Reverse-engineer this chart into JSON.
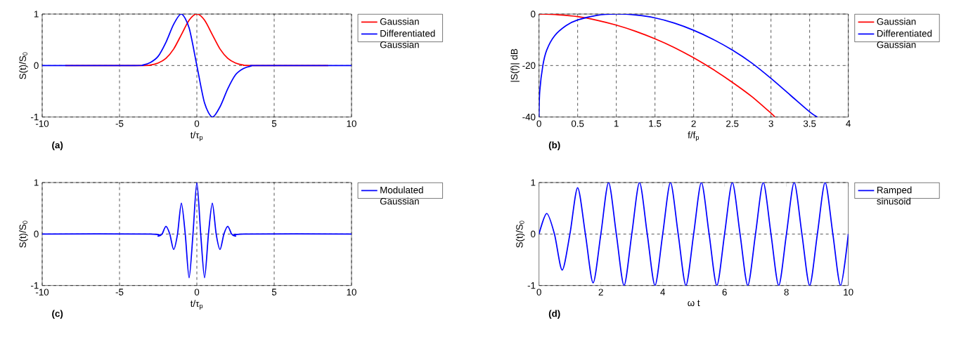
{
  "chart_data": [
    {
      "type": "line",
      "xlabel": "t/τ$_{p}$",
      "ylabel": "S(t)/S$_{0}$",
      "annotations": [
        "(a)"
      ],
      "xlim": [
        -10,
        10
      ],
      "ylim": [
        -1,
        1
      ],
      "xticks": [
        -10,
        -5,
        0,
        5,
        10
      ],
      "yticks": [
        -1,
        0,
        1
      ],
      "grid": true,
      "legend": "top right",
      "series": [
        {
          "name": "Gaussian",
          "color": "#ff0000",
          "x": [
            -8.5,
            -3.5,
            -3,
            -2.5,
            -2,
            -1.5,
            -1,
            -0.5,
            0,
            0.5,
            1,
            1.5,
            2,
            2.5,
            3,
            3.5,
            8.5
          ],
          "values": [
            0,
            0,
            0.01,
            0.05,
            0.14,
            0.32,
            0.6,
            0.88,
            1,
            0.88,
            0.6,
            0.32,
            0.14,
            0.05,
            0.01,
            0,
            0
          ]
        },
        {
          "name": "Differentiated Gaussian",
          "color": "#0000ff",
          "x": [
            -10,
            -4,
            -3.5,
            -3,
            -2.5,
            -2,
            -1.5,
            -1,
            -0.5,
            0,
            0.5,
            1,
            1.5,
            2,
            2.5,
            3,
            3.5,
            4,
            10
          ],
          "values": [
            0,
            0,
            0.01,
            0.06,
            0.18,
            0.45,
            0.8,
            1,
            0.73,
            0,
            -0.73,
            -1,
            -0.8,
            -0.45,
            -0.18,
            -0.06,
            -0.01,
            0,
            0
          ]
        }
      ]
    },
    {
      "type": "line",
      "xlabel": "f/f$_{p}$",
      "ylabel": "|S(f)| dB",
      "annotations": [
        "(b)"
      ],
      "xlim": [
        0,
        4
      ],
      "ylim": [
        -40,
        0
      ],
      "xticks": [
        0,
        0.5,
        1,
        1.5,
        2,
        2.5,
        3,
        3.5,
        4
      ],
      "yticks": [
        -40,
        -20,
        0
      ],
      "grid": true,
      "legend": "top right",
      "series": [
        {
          "name": "Gaussian",
          "color": "#ff0000",
          "x": [
            0,
            0.25,
            0.5,
            0.75,
            1,
            1.25,
            1.5,
            1.75,
            2,
            2.25,
            2.5,
            2.75,
            3,
            3.05
          ],
          "values": [
            0,
            -0.3,
            -1,
            -2.4,
            -4.3,
            -6.7,
            -9.6,
            -13,
            -17,
            -21.5,
            -26.5,
            -32,
            -38.5,
            -40
          ]
        },
        {
          "name": "Differentiated Gaussian",
          "color": "#0000ff",
          "x": [
            0,
            0.01,
            0.05,
            0.1,
            0.2,
            0.35,
            0.5,
            0.75,
            1,
            1.25,
            1.5,
            1.75,
            2,
            2.25,
            2.5,
            2.75,
            3,
            3.25,
            3.5,
            3.6
          ],
          "values": [
            -40,
            -30,
            -20,
            -14,
            -8.5,
            -4.5,
            -2.3,
            -0.5,
            0,
            -0.4,
            -1.5,
            -3.5,
            -6.3,
            -9.8,
            -14,
            -19,
            -25,
            -31.5,
            -38,
            -40
          ]
        }
      ]
    },
    {
      "type": "line",
      "xlabel": "t/τ$_{p}$",
      "ylabel": "S(t)/S$_{0}$",
      "annotations": [
        "(c)"
      ],
      "xlim": [
        -10,
        10
      ],
      "ylim": [
        -1,
        1
      ],
      "xticks": [
        -10,
        -5,
        0,
        5,
        10
      ],
      "yticks": [
        -1,
        0,
        1
      ],
      "grid": true,
      "legend": "top right",
      "series": [
        {
          "name": "Modulated Gaussian",
          "color": "#0000ff",
          "x": [
            -10,
            -3,
            -2.5,
            -2.25,
            -2,
            -1.75,
            -1.5,
            -1.25,
            -1,
            -0.75,
            -0.5,
            -0.25,
            0,
            0.25,
            0.5,
            0.75,
            1,
            1.25,
            1.5,
            1.75,
            2,
            2.25,
            2.5,
            3,
            10
          ],
          "values": [
            0,
            0,
            -0.04,
            0,
            0.15,
            0,
            -0.3,
            0,
            0.6,
            0,
            -0.85,
            0,
            1,
            0,
            -0.85,
            0,
            0.6,
            0,
            -0.3,
            0,
            0.15,
            0,
            -0.04,
            0,
            0
          ]
        }
      ]
    },
    {
      "type": "line",
      "xlabel": "ω t",
      "ylabel": "S(t)/S$_{0}$",
      "annotations": [
        "(d)"
      ],
      "xlim": [
        0,
        10
      ],
      "ylim": [
        -1,
        1
      ],
      "xticks": [
        0,
        2,
        4,
        6,
        8,
        10
      ],
      "yticks": [
        -1,
        0,
        1
      ],
      "grid": "y",
      "legend": "top right",
      "series": [
        {
          "name": "Ramped sinusoid",
          "color": "#0000ff",
          "x": [
            0,
            0.25,
            0.5,
            0.75,
            1,
            1.25,
            1.5,
            1.75,
            2,
            2.25,
            2.5,
            2.75,
            3,
            3.25,
            3.5,
            3.75,
            4,
            4.25,
            4.5,
            4.75,
            5,
            5.25,
            5.5,
            5.75,
            6,
            6.25,
            6.5,
            6.75,
            7,
            7.25,
            7.5,
            7.75,
            8,
            8.25,
            8.5,
            8.75,
            9,
            9.25,
            9.5,
            9.75,
            10
          ],
          "values": [
            0,
            0.4,
            0,
            -0.7,
            0,
            0.9,
            0,
            -0.95,
            0,
            1,
            0,
            -1,
            0,
            1,
            0,
            -1,
            0,
            1,
            0,
            -1,
            0,
            1,
            0,
            -1,
            0,
            1,
            0,
            -1,
            0,
            1,
            0,
            -1,
            0,
            1,
            0,
            -1,
            0,
            1,
            0,
            -1,
            0
          ]
        }
      ]
    }
  ]
}
